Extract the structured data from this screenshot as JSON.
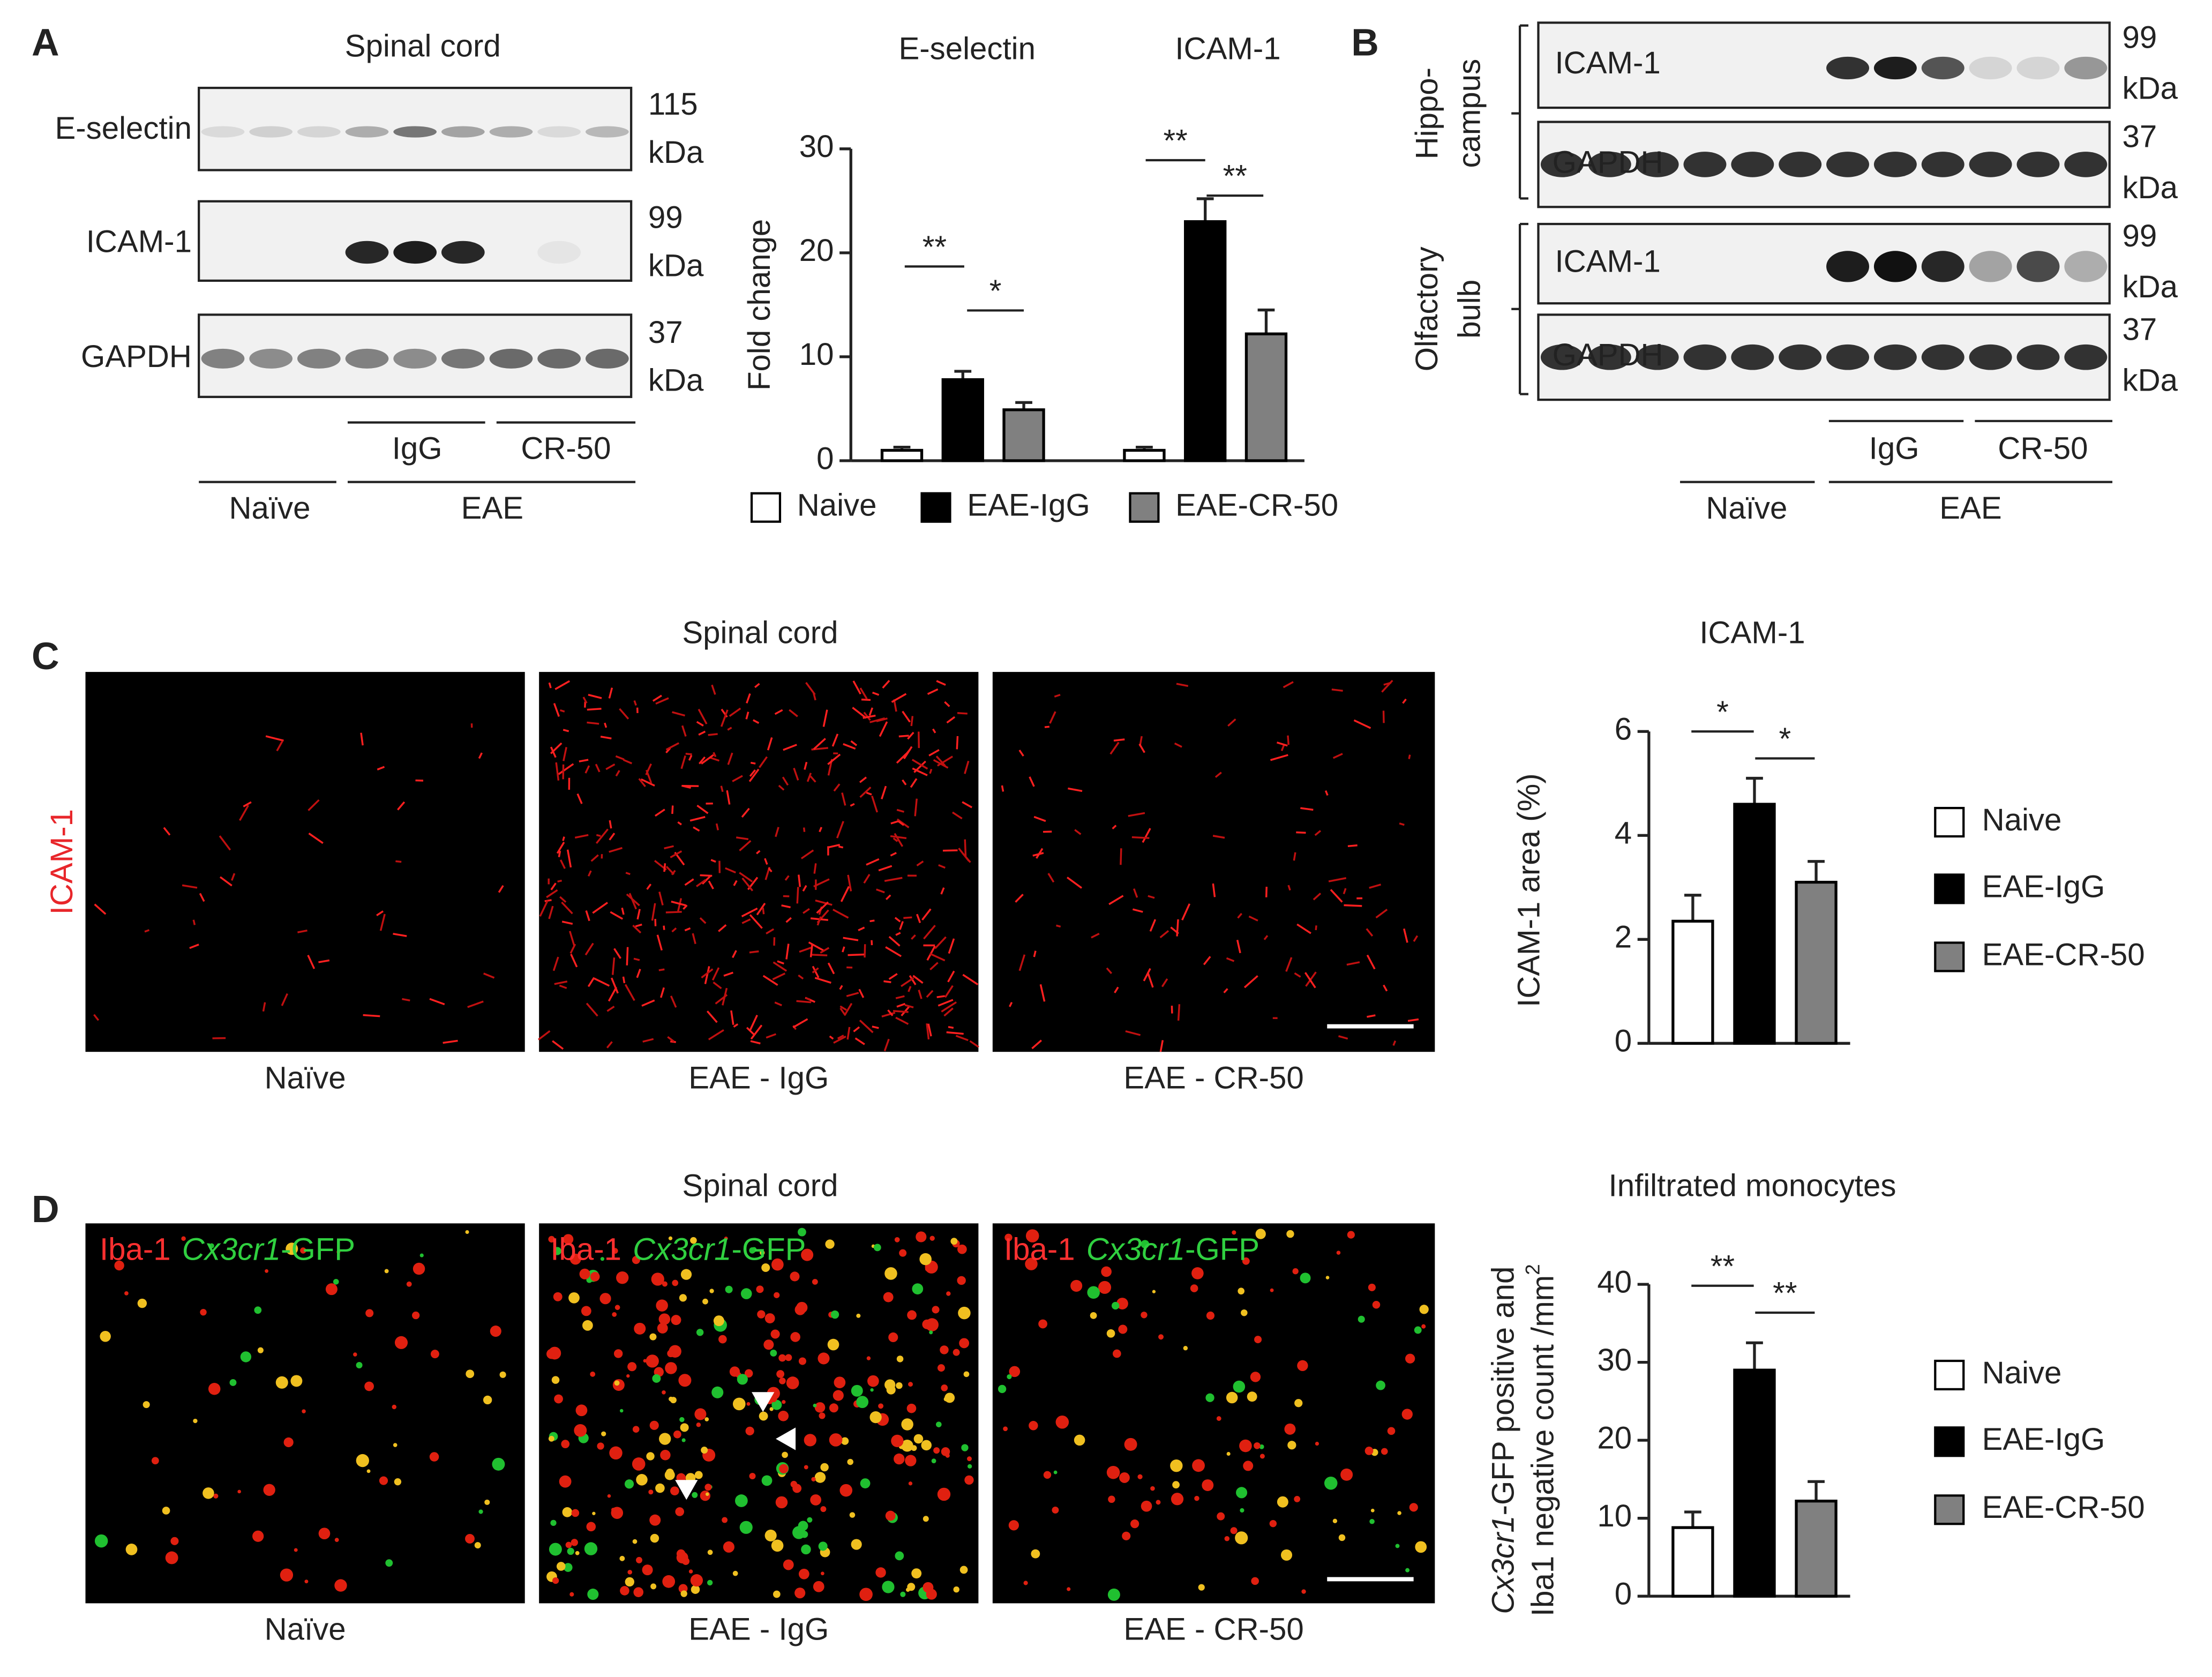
{
  "panel_a": {
    "label": "A",
    "title": "Spinal cord",
    "blots": [
      {
        "name": "E-selectin",
        "mw": 115,
        "unit": "kDa"
      },
      {
        "name": "ICAM-1",
        "mw": 99,
        "unit": "kDa"
      },
      {
        "name": "GAPDH",
        "mw": 37,
        "unit": "kDa"
      }
    ],
    "groups": {
      "igg": "IgG",
      "cr50": "CR-50",
      "naive": "Naïve",
      "eae": "EAE"
    }
  },
  "panel_b": {
    "label": "B",
    "regions": [
      [
        "Hippo-",
        "campus"
      ],
      [
        "Olfactory",
        "bulb"
      ]
    ],
    "blots": [
      {
        "name": "ICAM-1",
        "mw": 99,
        "unit": "kDa"
      },
      {
        "name": "GAPDH",
        "mw": 37,
        "unit": "kDa"
      },
      {
        "name": "ICAM-1",
        "mw": 99,
        "unit": "kDa"
      },
      {
        "name": "GAPDH",
        "mw": 37,
        "unit": "kDa"
      }
    ],
    "groups": {
      "igg": "IgG",
      "cr50": "CR-50",
      "naive": "Naïve",
      "eae": "EAE"
    }
  },
  "panel_c": {
    "label": "C",
    "title": "Spinal cord",
    "stain": "ICAM-1",
    "captions": [
      "Naïve",
      "EAE - IgG",
      "EAE - CR-50"
    ]
  },
  "panel_d": {
    "label": "D",
    "title": "Spinal cord",
    "stain": [
      "Iba-1",
      "Cx3cr1",
      "-GFP"
    ],
    "captions": [
      "Naïve",
      "EAE - IgG",
      "EAE - CR-50"
    ]
  },
  "chart_data": [
    {
      "type": "bar",
      "categories": [
        "E-selectin",
        "ICAM-1"
      ],
      "series": [
        {
          "name": "Naive",
          "color": "#ffffff",
          "values": [
            1,
            1
          ],
          "errors": [
            0.3,
            0.3
          ]
        },
        {
          "name": "EAE-IgG",
          "color": "#000000",
          "values": [
            7.8,
            23
          ],
          "errors": [
            0.8,
            2.2
          ]
        },
        {
          "name": "EAE-CR-50",
          "color": "#808080",
          "values": [
            4.9,
            12.2
          ],
          "errors": [
            0.7,
            2.3
          ]
        }
      ],
      "y_label": "Fold change",
      "ylim": [
        0,
        30
      ],
      "yticks": [
        0,
        10,
        20,
        30
      ],
      "significance": [
        "**",
        "*",
        "**",
        "**"
      ]
    },
    {
      "type": "bar",
      "title": "ICAM-1",
      "categories": [
        "Naive",
        "EAE-IgG",
        "EAE-CR-50"
      ],
      "values": [
        2.35,
        4.6,
        3.1
      ],
      "errors": [
        0.5,
        0.5,
        0.4
      ],
      "colors": [
        "#ffffff",
        "#000000",
        "#808080"
      ],
      "y_label": "ICAM-1 area (%)",
      "ylim": [
        0,
        6
      ],
      "yticks": [
        0,
        2,
        4,
        6
      ],
      "significance": [
        "*",
        "*"
      ]
    },
    {
      "type": "bar",
      "title": "Infiltrated monocytes",
      "categories": [
        "Naive",
        "EAE-IgG",
        "EAE-CR-50"
      ],
      "values": [
        8.8,
        29,
        12.2
      ],
      "errors": [
        2,
        3.5,
        2.5
      ],
      "colors": [
        "#ffffff",
        "#000000",
        "#808080"
      ],
      "y_label": [
        "Cx3cr1",
        "-GFP positive and",
        "Iba1 negative count /mm",
        "2"
      ],
      "ylim": [
        0,
        40
      ],
      "yticks": [
        0,
        10,
        20,
        30,
        40
      ],
      "significance": [
        "**",
        "**"
      ]
    }
  ]
}
